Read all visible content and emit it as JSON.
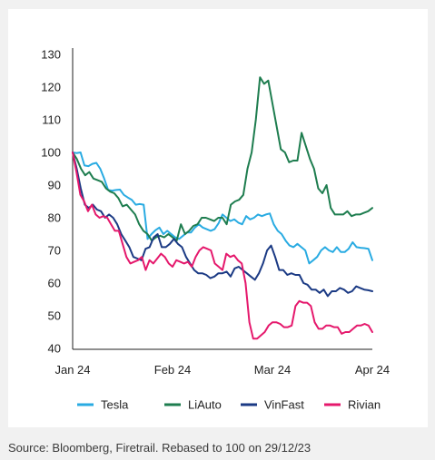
{
  "source_note": "Source: Bloomberg, Firetrail. Rebased to 100 on 29/12/23",
  "chart_data": {
    "type": "line",
    "title": "",
    "xlabel": "",
    "ylabel": "",
    "x_ticks": [
      "Jan 24",
      "Feb 24",
      "Mar 24",
      "Apr 24"
    ],
    "x_range": [
      "Jan 24",
      "Apr 24"
    ],
    "ylim": [
      40,
      130
    ],
    "y_ticks": [
      40,
      50,
      60,
      70,
      80,
      90,
      100,
      110,
      120,
      130
    ],
    "grid": false,
    "legend_position": "bottom",
    "x_unit": "trading days since 29/12/23 (index)",
    "series": [
      {
        "name": "Tesla",
        "color": "#29abe2",
        "values": [
          100,
          99.8,
          100,
          96,
          95.8,
          96.5,
          96.8,
          95,
          92,
          88.5,
          88.3,
          88.5,
          88.6,
          87,
          86.2,
          85.5,
          84,
          84.2,
          84,
          73.5,
          75,
          76.2,
          77,
          75,
          76,
          75,
          74,
          73.5,
          74.5,
          75.5,
          75.5,
          77,
          78,
          77,
          76.5,
          76,
          76.5,
          78.3,
          81,
          80,
          79,
          79.5,
          78.5,
          78,
          80.5,
          79.5,
          80,
          81,
          80.5,
          81,
          81.3,
          78,
          76,
          75,
          73,
          71.5,
          71,
          72,
          71,
          70,
          66,
          67,
          68,
          70,
          71,
          70,
          69.5,
          71,
          69.5,
          69.5,
          70.5,
          72.5,
          71,
          70.8,
          70.7,
          70.5,
          67
        ]
      },
      {
        "name": "LiAuto",
        "color": "#1e7d4f",
        "values": [
          100,
          98,
          95,
          93,
          94,
          92,
          91.5,
          91,
          89,
          88,
          87.5,
          86,
          83.5,
          84,
          82.5,
          81,
          78,
          76,
          75,
          73,
          74,
          74.5,
          74,
          75,
          74,
          73,
          78,
          75,
          76,
          77.5,
          78,
          80,
          80,
          79.5,
          79,
          80,
          80,
          78,
          84,
          85,
          85.5,
          87,
          95,
          100,
          110,
          123,
          121,
          122,
          115,
          108,
          101,
          100,
          97,
          97.5,
          97.5,
          106,
          102,
          98,
          95,
          89,
          87.5,
          90,
          83,
          81,
          81,
          81,
          82,
          80.5,
          81,
          81,
          81.5,
          82,
          83
        ]
      },
      {
        "name": "VinFast",
        "color": "#1b3a84",
        "values": [
          100,
          95,
          89,
          84,
          83,
          84,
          82.5,
          82,
          80,
          81,
          80,
          78,
          75,
          73,
          71,
          68,
          67.5,
          67,
          70.5,
          71,
          74,
          75,
          71,
          71,
          72,
          73.5,
          72,
          71,
          68,
          66,
          64,
          63,
          63,
          62.5,
          61.5,
          62,
          63,
          63,
          63.5,
          62,
          64.5,
          65,
          64,
          63,
          62,
          61,
          63,
          66,
          70,
          71.5,
          68,
          64,
          64,
          62.5,
          63,
          62.5,
          62.5,
          60,
          59.5,
          58,
          58,
          57,
          58,
          56,
          57.5,
          57.5,
          58.5,
          58,
          57,
          57.5,
          59,
          58.5,
          58,
          57.8,
          57.5
        ]
      },
      {
        "name": "Rivian",
        "color": "#e5186c",
        "values": [
          100,
          94,
          87,
          85,
          82,
          84,
          81,
          80,
          80.5,
          80,
          78,
          76,
          76,
          72,
          68,
          66,
          66.5,
          67,
          68,
          64,
          67,
          66,
          67.5,
          69,
          68,
          66,
          65,
          67,
          66.5,
          66,
          66.5,
          65,
          68,
          70,
          71,
          70.5,
          70,
          66,
          65,
          64,
          69,
          68,
          68.5,
          67,
          66,
          60,
          48,
          43,
          43,
          44,
          45,
          47,
          48,
          48,
          47.5,
          46.5,
          46.5,
          47,
          53,
          54.5,
          54,
          54,
          53,
          48,
          46,
          46,
          47,
          47,
          46.5,
          46.5,
          44.5,
          45,
          45,
          46,
          47,
          47,
          47.5,
          47,
          45
        ]
      }
    ]
  }
}
